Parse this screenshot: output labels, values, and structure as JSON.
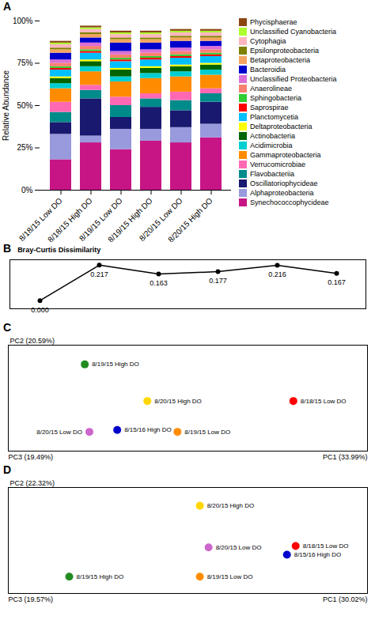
{
  "chart_data": [
    {
      "type": "bar",
      "title": "A",
      "stacked": true,
      "categories": [
        "8/18/15 Low DO",
        "8/18/15 High DO",
        "8/19/15 Low DO",
        "8/19/15 High DO",
        "8/20/15 Low DO",
        "8/20/15 High DO"
      ],
      "series": [
        {
          "name": "Phycisphaerae",
          "color": "#8B4513",
          "values": [
            0.01,
            0.01,
            0.01,
            0.01,
            0.01,
            0.01
          ]
        },
        {
          "name": "Unclassified Cyanobacteria",
          "color": "#ADFF2F",
          "values": [
            0.01,
            0.01,
            0.01,
            0.01,
            0.01,
            0.01
          ]
        },
        {
          "name": "Cytophagia",
          "color": "#FFB6C1",
          "values": [
            0.02,
            0.02,
            0.02,
            0.02,
            0.02,
            0.02
          ]
        },
        {
          "name": "Epsilonproteobacteria",
          "color": "#808000",
          "values": [
            0.01,
            0.01,
            0.01,
            0.01,
            0.01,
            0.01
          ]
        },
        {
          "name": "Betaproteobacteria",
          "color": "#F4A460",
          "values": [
            0.02,
            0.02,
            0.02,
            0.02,
            0.02,
            0.02
          ]
        },
        {
          "name": "Bacteroidia",
          "color": "#0000CD",
          "values": [
            0.04,
            0.03,
            0.05,
            0.04,
            0.04,
            0.03
          ]
        },
        {
          "name": "Unclassified Proteobacteria",
          "color": "#DA70D6",
          "values": [
            0.02,
            0.02,
            0.02,
            0.02,
            0.02,
            0.02
          ]
        },
        {
          "name": "Anaerolineae",
          "color": "#FA8072",
          "values": [
            0.02,
            0.02,
            0.02,
            0.02,
            0.02,
            0.02
          ]
        },
        {
          "name": "Sphingobacteria",
          "color": "#32CD32",
          "values": [
            0.01,
            0.01,
            0.01,
            0.01,
            0.01,
            0.01
          ]
        },
        {
          "name": "Saprospirae",
          "color": "#FF0000",
          "values": [
            0.01,
            0.01,
            0.01,
            0.01,
            0.01,
            0.01
          ]
        },
        {
          "name": "Planctomycetia",
          "color": "#00BFFF",
          "values": [
            0.04,
            0.04,
            0.04,
            0.04,
            0.04,
            0.04
          ]
        },
        {
          "name": "Deltaproteobacteria",
          "color": "#FFFF00",
          "values": [
            0.01,
            0.01,
            0.01,
            0.01,
            0.01,
            0.01
          ]
        },
        {
          "name": "Actinobacteria",
          "color": "#006400",
          "values": [
            0.03,
            0.03,
            0.04,
            0.03,
            0.03,
            0.03
          ]
        },
        {
          "name": "Acidimicrobia",
          "color": "#00CED1",
          "values": [
            0.03,
            0.03,
            0.03,
            0.03,
            0.03,
            0.03
          ]
        },
        {
          "name": "Gammaproteobacteria",
          "color": "#FF8C00",
          "values": [
            0.08,
            0.08,
            0.09,
            0.09,
            0.09,
            0.08
          ]
        },
        {
          "name": "Verrucomicrobiae",
          "color": "#FF69B4",
          "values": [
            0.06,
            0.03,
            0.05,
            0.03,
            0.05,
            0.03
          ]
        },
        {
          "name": "Flavobacteriia",
          "color": "#008B8B",
          "values": [
            0.06,
            0.05,
            0.07,
            0.05,
            0.06,
            0.05
          ]
        },
        {
          "name": "Oscillatoriophycideae",
          "color": "#191970",
          "values": [
            0.07,
            0.22,
            0.07,
            0.13,
            0.1,
            0.13
          ]
        },
        {
          "name": "Alphaproteobacteria",
          "color": "#9999DD",
          "values": [
            0.15,
            0.04,
            0.12,
            0.07,
            0.09,
            0.08
          ]
        },
        {
          "name": "Synechococcophycideae",
          "color": "#C71585",
          "values": [
            0.18,
            0.28,
            0.24,
            0.29,
            0.28,
            0.31
          ]
        }
      ],
      "ylabel": "Relative Abundance",
      "ylim": [
        0,
        1
      ],
      "yticks": [
        {
          "value": 0,
          "label": "0%"
        },
        {
          "value": 0.25,
          "label": "25%"
        },
        {
          "value": 0.5,
          "label": "50%"
        },
        {
          "value": 0.75,
          "label": "75%"
        },
        {
          "value": 1,
          "label": "100%"
        }
      ],
      "grid": false,
      "legend": "right"
    },
    {
      "type": "line",
      "title": "B",
      "subtitle": "Bray-Curtis Dissimilarity",
      "categories": [
        null,
        null,
        null,
        null,
        null,
        null
      ],
      "values": [
        0,
        0.217,
        0.163,
        0.177,
        0.216,
        0.167
      ],
      "value_labels": [
        "0.000",
        "0.217",
        "0.163",
        "0.177",
        "0.216",
        "0.167"
      ],
      "data_labels": true,
      "color": "#000000",
      "marker": "circle",
      "line_style": "solid",
      "ylim": [
        -0.05,
        0.25
      ],
      "tick_labels": false
    },
    {
      "type": "scatter",
      "title": "C",
      "x": [
        -0.32,
        -0.05,
        0.58,
        -0.18,
        -0.3,
        0.08
      ],
      "values": [
        0.6,
        0.22,
        0.22,
        -0.08,
        -0.1,
        -0.1
      ],
      "labels": [
        "8/19/15 High DO",
        "8/20/15 High DO",
        "8/18/15 Low DO",
        "8/15/16 High DO",
        "8/20/15 Low DO",
        "8/19/15 Low DO"
      ],
      "colors": [
        "#228B22",
        "#FFD700",
        "#FF0000",
        "#0000CD",
        "#CC66CC",
        "#FF8C00"
      ],
      "marker": "circle",
      "xlabel": "PC1 (33.99%)",
      "ylabel": "PC2 (20.59%)",
      "annotations": [
        "PC3 (19.49%)"
      ],
      "xlim": [
        -0.65,
        0.9
      ],
      "ylim": [
        -0.3,
        0.8
      ],
      "tick_labels": false
    },
    {
      "type": "scatter",
      "title": "D",
      "x": [
        0.08,
        0.52,
        0.12,
        0.48,
        -0.52,
        0.08
      ],
      "values": [
        0.55,
        0.0,
        -0.02,
        -0.12,
        -0.42,
        -0.42
      ],
      "labels": [
        "8/20/15 High DO",
        "8/18/15 Low DO",
        "8/20/15 Low DO",
        "8/15/16 High DO",
        "8/19/15 High DO",
        "8/19/15 Low DO"
      ],
      "colors": [
        "#FFD700",
        "#FF0000",
        "#CC66CC",
        "#0000CD",
        "#228B22",
        "#FF8C00"
      ],
      "marker": "circle",
      "xlabel": "PC1 (30.02%)",
      "ylabel": "PC2 (22.32%)",
      "annotations": [
        "PC3 (19.57%)"
      ],
      "xlim": [
        -0.8,
        0.85
      ],
      "ylim": [
        -0.65,
        0.8
      ],
      "tick_labels": false
    }
  ]
}
